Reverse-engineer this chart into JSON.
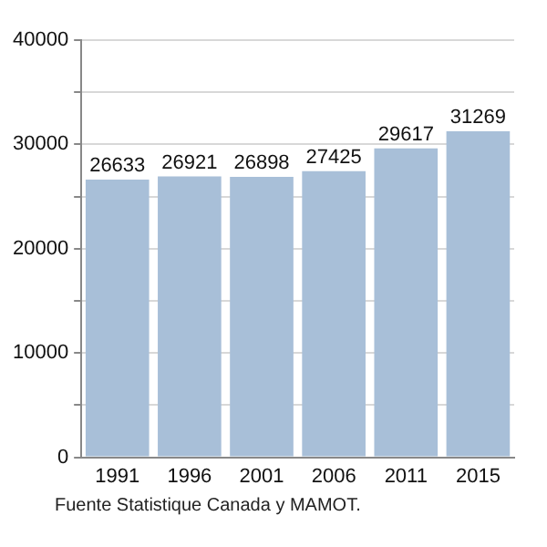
{
  "chart_data": {
    "type": "bar",
    "categories": [
      "1991",
      "1996",
      "2001",
      "2006",
      "2011",
      "2015"
    ],
    "values": [
      26633,
      26921,
      26898,
      27425,
      29617,
      31269
    ],
    "color": "#a8bfd8",
    "ylim": [
      0,
      40000
    ],
    "yticks": [
      0,
      {
        "value": 5000,
        "label": null
      },
      10000,
      {
        "value": 15000,
        "label": null
      },
      20000,
      {
        "value": 25000,
        "label": null
      },
      30000,
      {
        "value": 35000,
        "label": null
      },
      40000
    ],
    "grid": "y",
    "data_labels": true,
    "annotations": [
      "Fuente Statistique Canada y MAMOT."
    ]
  }
}
